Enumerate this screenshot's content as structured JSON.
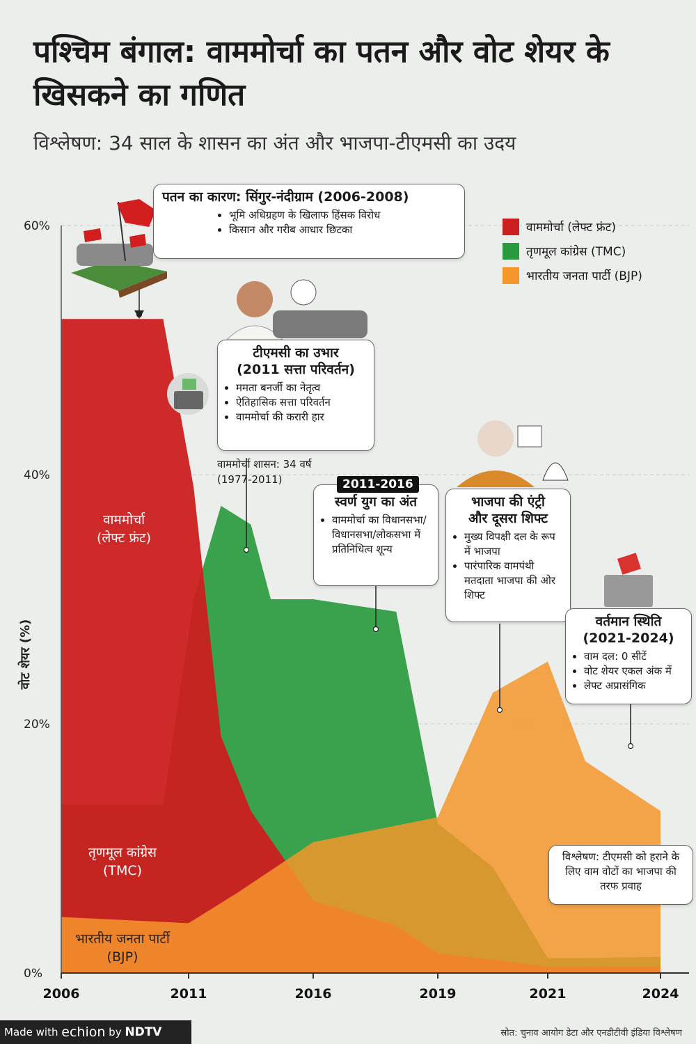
{
  "header": {
    "title": "पश्चिम बंगाल: वाममोर्चा का पतन और वोट शेयर के खिसकने का गणित",
    "subtitle": "विश्लेषण: 34 साल के शासन का अंत और भाजपा-टीएमसी का उदय"
  },
  "chart_data": {
    "type": "area",
    "ylabel": "वोट शेयर (%)",
    "ylim": [
      0,
      60
    ],
    "yticks": [
      "0%",
      "20%",
      "40%",
      "60%"
    ],
    "x_ticks": [
      "2006",
      "2011",
      "2016",
      "2019",
      "2021",
      "2024"
    ],
    "series": [
      {
        "name": "वाममोर्चा (लेफ्ट फ्रंट)",
        "color": "#cc1f1f",
        "points": [
          [
            2006,
            52.5
          ],
          [
            2010,
            52.5
          ],
          [
            2011.2,
            39
          ],
          [
            2012.3,
            19
          ],
          [
            2013.5,
            13
          ],
          [
            2016,
            5.8
          ],
          [
            2018,
            3.8
          ],
          [
            2019,
            1.6
          ],
          [
            2021,
            0.5
          ],
          [
            2024,
            0.5
          ]
        ]
      },
      {
        "name": "तृणमूल कांग्रेस (TMC)",
        "color": "#2a9a3e",
        "points": [
          [
            2006,
            13.5
          ],
          [
            2010,
            13.5
          ],
          [
            2011.2,
            30
          ],
          [
            2012.3,
            37.5
          ],
          [
            2013.5,
            36
          ],
          [
            2014.3,
            30
          ],
          [
            2016,
            30
          ],
          [
            2018,
            29
          ],
          [
            2019,
            12
          ],
          [
            2020,
            8.5
          ],
          [
            2021,
            1.2
          ],
          [
            2022,
            1.2
          ],
          [
            2024,
            1.3
          ]
        ]
      },
      {
        "name": "भारतीय जनता पार्टी (BJP)",
        "color": "#f5962b",
        "points": [
          [
            2006,
            4.5
          ],
          [
            2011,
            4
          ],
          [
            2013,
            6.5
          ],
          [
            2016,
            10.5
          ],
          [
            2019,
            12.5
          ],
          [
            2020,
            22.5
          ],
          [
            2021,
            25
          ],
          [
            2022,
            17
          ],
          [
            2024,
            13
          ]
        ]
      }
    ]
  },
  "legend": [
    {
      "label": "वाममोर्चा (लेफ्ट फ्रंट)",
      "color": "#cc1f1f"
    },
    {
      "label": "तृणमूल कांग्रेस (TMC)",
      "color": "#2a9a3e"
    },
    {
      "label": "भारतीय जनता पार्टी (BJP)",
      "color": "#f5962b"
    }
  ],
  "area_labels": {
    "left": "वाममोर्चा\n(लेफ्ट फ्रंट)",
    "tmc": "तृणमूल कांग्रेस\n(TMC)",
    "bjp": "भारतीय जनता पार्टी\n(BJP)"
  },
  "annotations": {
    "fall": {
      "title": "पतन का कारण: सिंगुर-नंदीग्राम (2006-2008)",
      "bullets": [
        "भूमि अधिग्रहण के खिलाफ हिंसक विरोध",
        "किसान और गरीब आधार छिटका"
      ]
    },
    "tmc_rise": {
      "title": "टीएमसी का उभार\n(2011 सत्ता परिवर्तन)",
      "bullets": [
        "ममता बनर्जी का नेतृत्व",
        "ऐतिहासिक सत्ता परिवर्तन",
        "वाममोर्चा की करारी हार"
      ]
    },
    "rule_note": "वाममोर्चा शासन: 34 वर्ष\n(1977-2011)",
    "golden_badge": "2011-2016",
    "golden": {
      "title": "स्वर्ण युग का अंत",
      "bullets": [
        "वाममोर्चा का विधानसभा/ विधानसभा/लोकसभा में प्रतिनिधित्व शून्य"
      ]
    },
    "bjp_entry": {
      "title": "भाजपा की एंट्री\nऔर दूसरा शिफ्ट",
      "bullets": [
        "मुख्य विपक्षी दल के रूप में भाजपा",
        "पारंपारिक वामपंथी मतदाता भाजपा की ओर शिफ्ट"
      ]
    },
    "current": {
      "title": "वर्तमान स्थिति\n(2021-2024)",
      "bullets": [
        "वाम दल: 0 सीटें",
        "वोट शेयर एकल अंक में",
        "लेफ्ट अप्रासंगिक"
      ]
    },
    "analysis": "विश्लेषण: टीएमसी को हराने के लिए वाम वोटों का भाजपा की तरफ प्रवाह"
  },
  "footer": {
    "made_with": "Made with",
    "brand": "echion",
    "by": "by",
    "publisher": "NDTV",
    "source": "स्रोत: चुनाव आयोग डेटा और एनडीटीवी इंडिया विश्लेषण"
  }
}
